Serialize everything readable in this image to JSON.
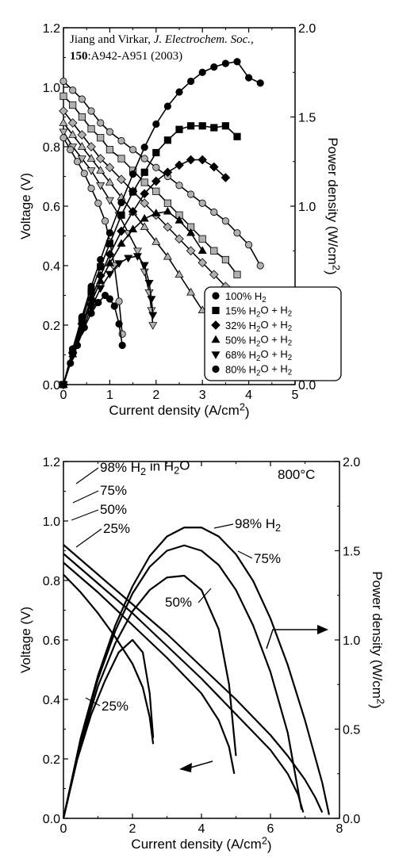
{
  "chart_data": [
    {
      "type": "line",
      "panel": "top",
      "xlabel": "Current density (A/cm2)",
      "ylabel_left": "Voltage (V)",
      "ylabel_right": "Power density (W/cm2)",
      "xlim": [
        0,
        5
      ],
      "ylim_left": [
        0,
        1.2
      ],
      "ylim_right": [
        0,
        2.0
      ],
      "x_ticks": [
        "0",
        "1",
        "2",
        "3",
        "4",
        "5"
      ],
      "y_left_ticks": [
        "0.0",
        "0.2",
        "0.4",
        "0.6",
        "0.8",
        "1.0",
        "1.2"
      ],
      "y_right_ticks": [
        "0.0",
        "0.5",
        "1.0",
        "1.5",
        "2.0"
      ],
      "citation": {
        "line1_plain": "Jiang and Virkar, ",
        "line1_italic": "J. Electrochem. Soc.",
        "line1_end": ",",
        "line2_bold": "150",
        "line2_rest": ":A942-A951 (2003)"
      },
      "legend": {
        "placement": "bottom-right",
        "entries": [
          {
            "marker": "circle",
            "label": "100% H2"
          },
          {
            "marker": "square",
            "label": "15% H2O + H2"
          },
          {
            "marker": "diamond",
            "label": "32% H2O + H2"
          },
          {
            "marker": "triangle-up",
            "label": "50% H2O + H2"
          },
          {
            "marker": "triangle-down",
            "label": "68% H2O + H2"
          },
          {
            "marker": "circle",
            "label": "80% H2O + H2"
          }
        ]
      },
      "series": [
        {
          "name": "100% H2",
          "marker": "circle",
          "kind": "voltage",
          "color": "#b0b0b0",
          "x": [
            0,
            0.2,
            0.4,
            0.6,
            0.8,
            1.0,
            1.25,
            1.5,
            1.75,
            2.0,
            2.25,
            2.5,
            2.75,
            3.0,
            3.25,
            3.5,
            3.75,
            4.0,
            4.25
          ],
          "y": [
            1.02,
            0.99,
            0.96,
            0.92,
            0.88,
            0.85,
            0.82,
            0.79,
            0.76,
            0.73,
            0.7,
            0.67,
            0.64,
            0.61,
            0.58,
            0.55,
            0.51,
            0.47,
            0.4
          ]
        },
        {
          "name": "15% H2O + H2",
          "marker": "square",
          "kind": "voltage",
          "color": "#b0b0b0",
          "x": [
            0,
            0.2,
            0.4,
            0.6,
            0.8,
            1.0,
            1.25,
            1.5,
            1.75,
            2.0,
            2.25,
            2.5,
            2.75,
            3.0,
            3.25,
            3.5,
            3.75
          ],
          "y": [
            0.97,
            0.94,
            0.9,
            0.86,
            0.83,
            0.79,
            0.76,
            0.72,
            0.68,
            0.65,
            0.61,
            0.57,
            0.53,
            0.49,
            0.45,
            0.42,
            0.37
          ]
        },
        {
          "name": "32% H2O + H2",
          "marker": "diamond",
          "kind": "voltage",
          "color": "#b0b0b0",
          "x": [
            0,
            0.2,
            0.4,
            0.6,
            0.8,
            1.0,
            1.25,
            1.5,
            1.75,
            2.0,
            2.25,
            2.5,
            2.75,
            3.0,
            3.25,
            3.5
          ],
          "y": [
            0.92,
            0.88,
            0.84,
            0.8,
            0.76,
            0.73,
            0.69,
            0.65,
            0.61,
            0.57,
            0.53,
            0.49,
            0.45,
            0.41,
            0.37,
            0.33
          ]
        },
        {
          "name": "50% H2O + H2",
          "marker": "triangle-up",
          "kind": "voltage",
          "color": "#b0b0b0",
          "x": [
            0,
            0.2,
            0.4,
            0.6,
            0.8,
            1.0,
            1.25,
            1.5,
            1.75,
            2.0,
            2.25,
            2.5,
            2.75,
            3.0
          ],
          "y": [
            0.88,
            0.84,
            0.8,
            0.76,
            0.72,
            0.68,
            0.63,
            0.58,
            0.53,
            0.48,
            0.43,
            0.37,
            0.31,
            0.25
          ]
        },
        {
          "name": "68% H2O + H2",
          "marker": "triangle-down",
          "kind": "voltage",
          "color": "#b0b0b0",
          "x": [
            0,
            0.2,
            0.4,
            0.6,
            0.8,
            1.0,
            1.2,
            1.4,
            1.6,
            1.75,
            1.85,
            1.9,
            1.93
          ],
          "y": [
            0.85,
            0.8,
            0.76,
            0.72,
            0.67,
            0.62,
            0.57,
            0.51,
            0.45,
            0.38,
            0.31,
            0.25,
            0.2
          ]
        },
        {
          "name": "80% H2O + H2",
          "marker": "circle",
          "kind": "voltage",
          "color": "#b0b0b0",
          "x": [
            0,
            0.15,
            0.3,
            0.45,
            0.6,
            0.75,
            0.9,
            1.0,
            1.1,
            1.2,
            1.27
          ],
          "y": [
            0.83,
            0.79,
            0.75,
            0.71,
            0.66,
            0.61,
            0.55,
            0.48,
            0.4,
            0.28,
            0.17
          ]
        },
        {
          "name": "100% H2",
          "marker": "circle",
          "kind": "power",
          "color": "#000000",
          "x": [
            0,
            0.2,
            0.4,
            0.6,
            0.8,
            1.0,
            1.25,
            1.5,
            1.75,
            2.0,
            2.25,
            2.5,
            2.75,
            3.0,
            3.25,
            3.5,
            3.75,
            4.0,
            4.25
          ],
          "y": [
            0,
            0.2,
            0.38,
            0.55,
            0.7,
            0.85,
            1.02,
            1.18,
            1.33,
            1.46,
            1.56,
            1.64,
            1.7,
            1.75,
            1.78,
            1.8,
            1.81,
            1.72,
            1.69
          ]
        },
        {
          "name": "15% H2O + H2",
          "marker": "square",
          "kind": "power",
          "color": "#000000",
          "x": [
            0,
            0.2,
            0.4,
            0.6,
            0.8,
            1.0,
            1.25,
            1.5,
            1.75,
            2.0,
            2.25,
            2.5,
            2.75,
            3.0,
            3.25,
            3.5,
            3.75
          ],
          "y": [
            0,
            0.19,
            0.36,
            0.52,
            0.66,
            0.79,
            0.95,
            1.08,
            1.19,
            1.3,
            1.37,
            1.43,
            1.45,
            1.45,
            1.44,
            1.45,
            1.39
          ]
        },
        {
          "name": "32% H2O + H2",
          "marker": "diamond",
          "kind": "power",
          "color": "#000000",
          "x": [
            0,
            0.2,
            0.4,
            0.6,
            0.8,
            1.0,
            1.25,
            1.5,
            1.75,
            2.0,
            2.25,
            2.5,
            2.75,
            3.0,
            3.25,
            3.5
          ],
          "y": [
            0,
            0.18,
            0.34,
            0.48,
            0.61,
            0.73,
            0.86,
            0.97,
            1.07,
            1.14,
            1.19,
            1.23,
            1.26,
            1.26,
            1.22,
            1.16
          ]
        },
        {
          "name": "50% H2O + H2",
          "marker": "triangle-up",
          "kind": "power",
          "color": "#000000",
          "x": [
            0,
            0.2,
            0.4,
            0.6,
            0.8,
            1.0,
            1.25,
            1.5,
            1.75,
            2.0,
            2.25,
            2.5,
            2.75,
            3.0
          ],
          "y": [
            0,
            0.17,
            0.32,
            0.46,
            0.58,
            0.68,
            0.79,
            0.87,
            0.93,
            0.96,
            0.97,
            0.92,
            0.85,
            0.75
          ]
        },
        {
          "name": "68% H2O + H2",
          "marker": "triangle-down",
          "kind": "power",
          "color": "#000000",
          "x": [
            0,
            0.2,
            0.4,
            0.6,
            0.8,
            1.0,
            1.2,
            1.4,
            1.6,
            1.75,
            1.85,
            1.9,
            1.93
          ],
          "y": [
            0,
            0.16,
            0.3,
            0.43,
            0.54,
            0.62,
            0.68,
            0.71,
            0.72,
            0.67,
            0.57,
            0.48,
            0.39
          ]
        },
        {
          "name": "80% H2O + H2",
          "marker": "circle",
          "kind": "power",
          "color": "#000000",
          "x": [
            0,
            0.15,
            0.3,
            0.45,
            0.6,
            0.75,
            0.9,
            1.0,
            1.1,
            1.2,
            1.27
          ],
          "y": [
            0,
            0.12,
            0.22,
            0.32,
            0.4,
            0.46,
            0.5,
            0.48,
            0.44,
            0.34,
            0.22
          ]
        }
      ]
    },
    {
      "type": "line",
      "panel": "bottom",
      "xlabel": "Current density (A/cm2)",
      "ylabel_left": "Voltage (V)",
      "ylabel_right": "Power density (W/cm2)",
      "xlim": [
        0,
        8
      ],
      "ylim_left": [
        0,
        1.2
      ],
      "ylim_right": [
        0,
        2.0
      ],
      "x_ticks": [
        "0",
        "2",
        "4",
        "6",
        "8"
      ],
      "y_left_ticks": [
        "0.0",
        "0.2",
        "0.4",
        "0.6",
        "0.8",
        "1.0",
        "1.2"
      ],
      "y_right_ticks": [
        "0.0",
        "0.5",
        "1.0",
        "1.5",
        "2.0"
      ],
      "temperature_label": "800°C",
      "labels": {
        "l98": "98% H2 in H2O",
        "l75": "75%",
        "l50": "50%",
        "l25": "25%",
        "r98": "98% H2",
        "r75": "75%",
        "r50": "50%",
        "r25": "25%"
      },
      "series": [
        {
          "name": "98% H2",
          "kind": "voltage",
          "x": [
            0,
            1,
            2,
            3,
            4,
            5,
            6,
            6.5,
            7.0,
            7.3,
            7.5
          ],
          "y": [
            0.92,
            0.82,
            0.72,
            0.62,
            0.51,
            0.4,
            0.28,
            0.21,
            0.13,
            0.07,
            0.02
          ]
        },
        {
          "name": "75%",
          "kind": "voltage",
          "x": [
            0,
            1,
            2,
            3,
            4,
            5,
            6,
            6.5,
            6.8,
            6.95
          ],
          "y": [
            0.89,
            0.79,
            0.69,
            0.58,
            0.47,
            0.35,
            0.23,
            0.15,
            0.08,
            0.02
          ]
        },
        {
          "name": "50%",
          "kind": "voltage",
          "x": [
            0,
            1,
            2,
            3,
            4,
            4.5,
            4.8,
            4.95
          ],
          "y": [
            0.86,
            0.76,
            0.65,
            0.54,
            0.42,
            0.33,
            0.24,
            0.15
          ]
        },
        {
          "name": "25%",
          "kind": "voltage",
          "x": [
            0,
            0.5,
            1,
            1.5,
            2,
            2.3,
            2.5,
            2.6
          ],
          "y": [
            0.82,
            0.76,
            0.69,
            0.61,
            0.52,
            0.44,
            0.34,
            0.25
          ]
        },
        {
          "name": "98% H2",
          "kind": "power",
          "x": [
            0,
            0.5,
            1,
            1.5,
            2,
            2.5,
            3,
            3.5,
            4,
            4.5,
            5,
            5.5,
            6,
            6.5,
            7,
            7.5,
            7.7
          ],
          "y": [
            0,
            0.45,
            0.8,
            1.08,
            1.3,
            1.47,
            1.58,
            1.63,
            1.63,
            1.58,
            1.48,
            1.33,
            1.12,
            0.86,
            0.55,
            0.2,
            0.02
          ]
        },
        {
          "name": "75%",
          "kind": "power",
          "x": [
            0,
            0.5,
            1,
            1.5,
            2,
            2.5,
            3,
            3.5,
            4,
            4.5,
            5,
            5.5,
            6,
            6.5,
            6.9
          ],
          "y": [
            0,
            0.44,
            0.78,
            1.05,
            1.26,
            1.41,
            1.5,
            1.53,
            1.5,
            1.42,
            1.28,
            1.08,
            0.82,
            0.48,
            0.05
          ]
        },
        {
          "name": "50%",
          "kind": "power",
          "x": [
            0,
            0.5,
            1,
            1.5,
            2,
            2.5,
            3,
            3.5,
            4,
            4.5,
            4.8,
            5.0
          ],
          "y": [
            0,
            0.42,
            0.74,
            0.98,
            1.16,
            1.28,
            1.35,
            1.36,
            1.28,
            1.06,
            0.75,
            0.35
          ]
        },
        {
          "name": "25%",
          "kind": "power",
          "x": [
            0,
            0.4,
            0.8,
            1.2,
            1.6,
            2.0,
            2.3,
            2.5,
            2.6
          ],
          "y": [
            0,
            0.33,
            0.58,
            0.77,
            0.93,
            1.0,
            0.93,
            0.7,
            0.45
          ]
        }
      ]
    }
  ]
}
